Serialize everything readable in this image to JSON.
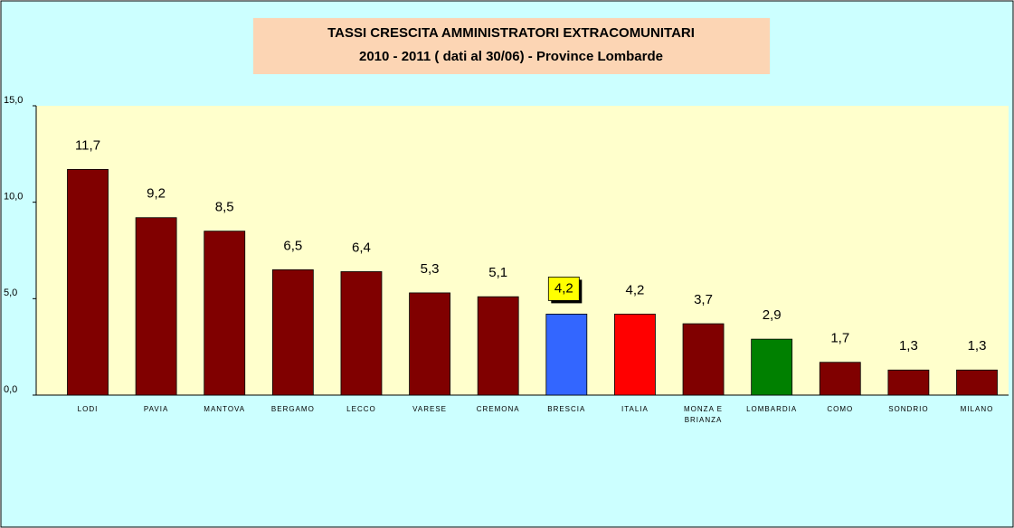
{
  "chart_data": {
    "type": "bar",
    "title": "TASSI CRESCITA AMMINISTRATORI EXTRACOMUNITARI",
    "subtitle": "2010 - 2011 ( dati al 30/06) - Province Lombarde",
    "categories": [
      "LODI",
      "PAVIA",
      "MANTOVA",
      "BERGAMO",
      "LECCO",
      "VARESE",
      "CREMONA",
      "BRESCIA",
      "ITALIA",
      "MONZA E BRIANZA",
      "LOMBARDIA",
      "COMO",
      "SONDRIO",
      "MILANO"
    ],
    "values": [
      11.7,
      9.2,
      8.5,
      6.5,
      6.4,
      5.3,
      5.1,
      4.2,
      4.2,
      3.7,
      2.9,
      1.7,
      1.3,
      1.3
    ],
    "value_labels": [
      "11,7",
      "9,2",
      "8,5",
      "6,5",
      "6,4",
      "5,3",
      "5,1",
      "4,2",
      "4,2",
      "3,7",
      "2,9",
      "1,7",
      "1,3",
      "1,3"
    ],
    "colors": [
      "#800000",
      "#800000",
      "#800000",
      "#800000",
      "#800000",
      "#800000",
      "#800000",
      "#3366ff",
      "#ff0000",
      "#800000",
      "#008000",
      "#800000",
      "#800000",
      "#800000"
    ],
    "highlighted_label": 7,
    "ylim": [
      0,
      15
    ],
    "yticks": [
      {
        "value": 0,
        "label": "0,0"
      },
      {
        "value": 5,
        "label": "5,0"
      },
      {
        "value": 10,
        "label": "10,0"
      },
      {
        "value": 15,
        "label": "15,0"
      }
    ],
    "grid": false
  }
}
